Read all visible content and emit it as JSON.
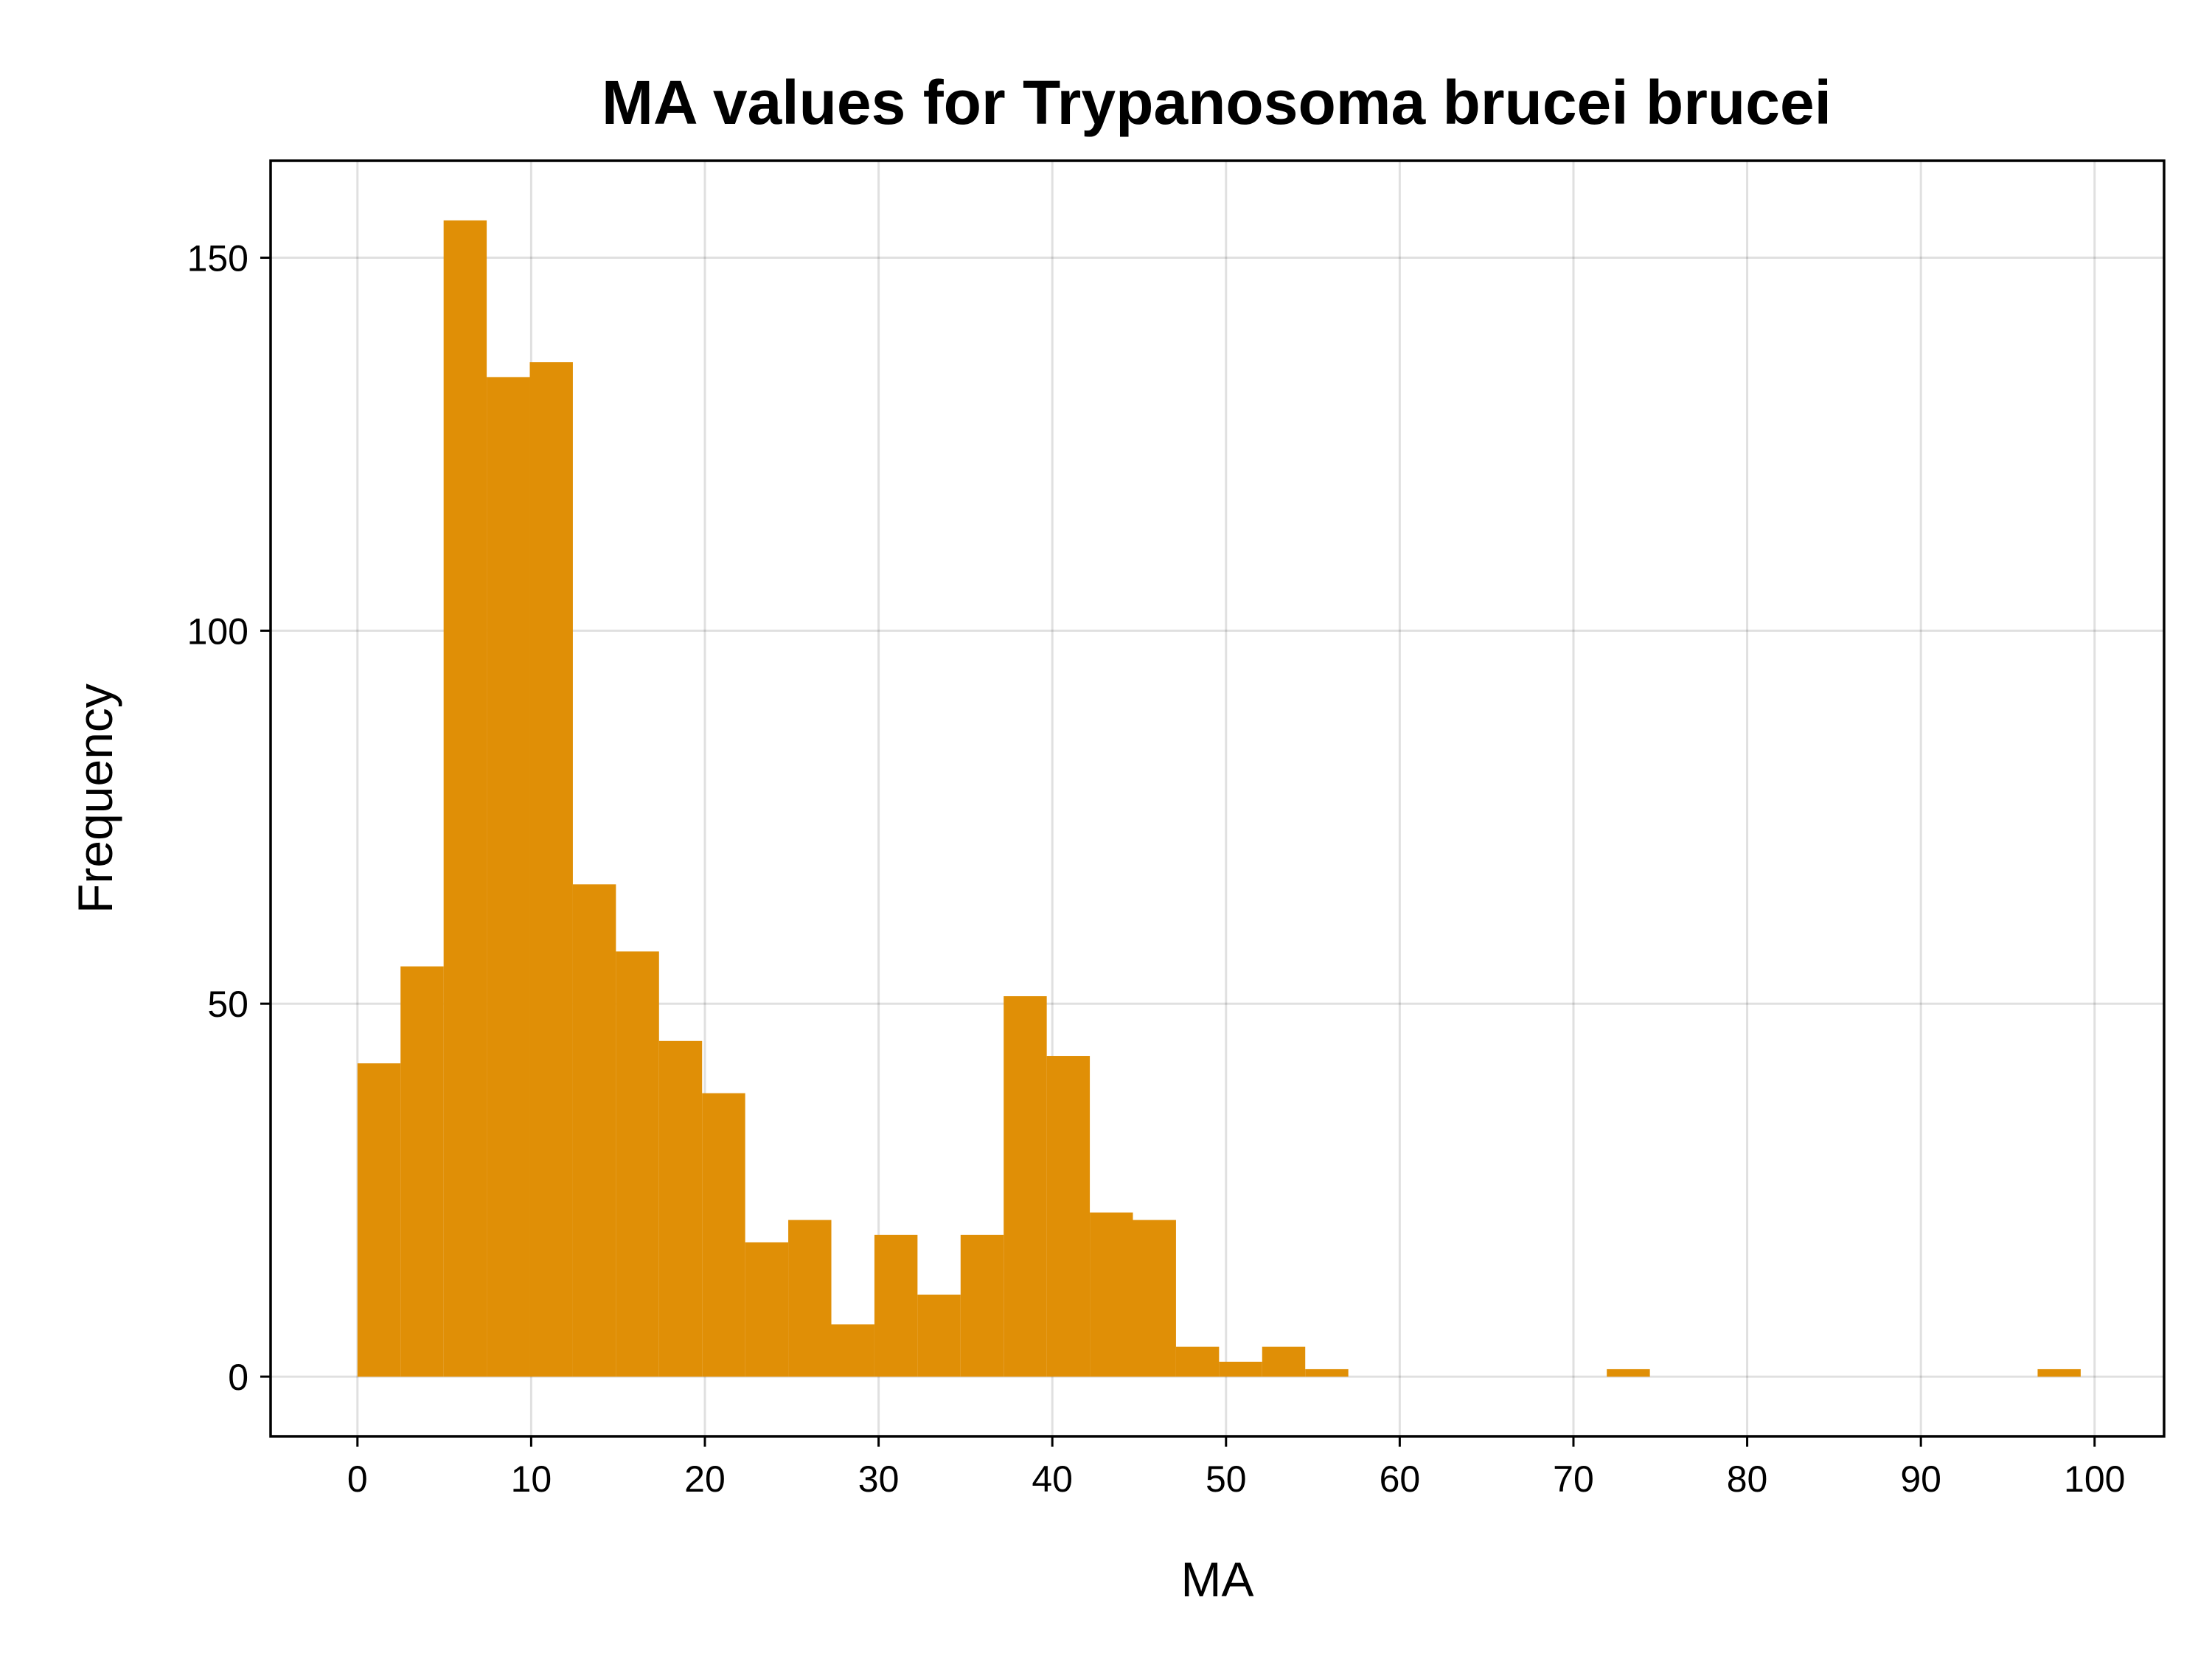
{
  "chart_data": {
    "type": "bar",
    "title": "MA values for Trypanosoma brucei brucei",
    "xlabel": "MA",
    "ylabel": "Frequency",
    "bar_color": "#e08f06",
    "grid": true,
    "xlim": [
      -5,
      104
    ],
    "ylim": [
      -8,
      163
    ],
    "xticks": [
      0,
      10,
      20,
      30,
      40,
      50,
      60,
      70,
      80,
      90,
      100
    ],
    "yticks": [
      0,
      50,
      100,
      150
    ],
    "bin_width": 2.48,
    "bins": [
      {
        "x0": 0.0,
        "count": 42
      },
      {
        "x0": 2.48,
        "count": 55
      },
      {
        "x0": 4.96,
        "count": 155
      },
      {
        "x0": 7.44,
        "count": 134
      },
      {
        "x0": 9.92,
        "count": 136
      },
      {
        "x0": 12.4,
        "count": 66
      },
      {
        "x0": 14.88,
        "count": 57
      },
      {
        "x0": 17.36,
        "count": 45
      },
      {
        "x0": 19.84,
        "count": 38
      },
      {
        "x0": 22.32,
        "count": 18
      },
      {
        "x0": 24.8,
        "count": 21
      },
      {
        "x0": 27.28,
        "count": 7
      },
      {
        "x0": 29.76,
        "count": 19
      },
      {
        "x0": 32.24,
        "count": 11
      },
      {
        "x0": 34.72,
        "count": 19
      },
      {
        "x0": 37.2,
        "count": 51
      },
      {
        "x0": 39.68,
        "count": 43
      },
      {
        "x0": 42.16,
        "count": 22
      },
      {
        "x0": 44.64,
        "count": 21
      },
      {
        "x0": 47.12,
        "count": 4
      },
      {
        "x0": 49.6,
        "count": 2
      },
      {
        "x0": 52.08,
        "count": 4
      },
      {
        "x0": 54.56,
        "count": 1
      },
      {
        "x0": 71.92,
        "count": 1
      },
      {
        "x0": 96.72,
        "count": 1
      }
    ]
  }
}
